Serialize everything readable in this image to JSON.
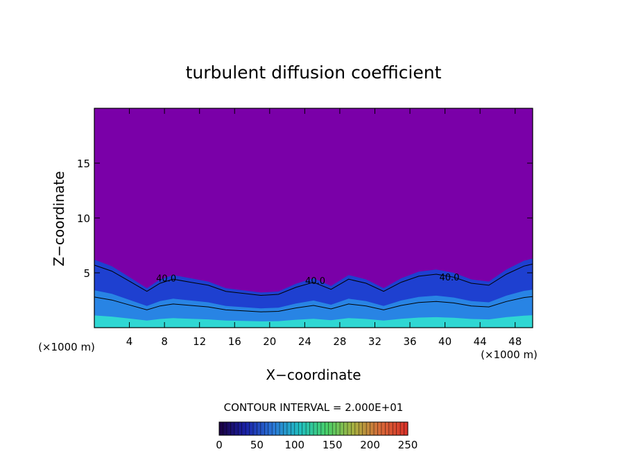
{
  "chart_data": {
    "type": "heatmap",
    "title": "turbulent diffusion coefficient",
    "xlabel": "X−coordinate",
    "ylabel": "Z−coordinate",
    "x_unit_label": "(×1000 m)",
    "x_unit_label_left": "(×1000 m)",
    "xlim": [
      0,
      50
    ],
    "ylim": [
      0,
      20
    ],
    "x_ticks": [
      4,
      8,
      12,
      16,
      20,
      24,
      28,
      32,
      36,
      40,
      44,
      48
    ],
    "y_ticks": [
      5,
      10,
      15
    ],
    "background_value": 0,
    "contour_labels": [
      {
        "text": "40.0",
        "x": 8.2,
        "z": 4.2
      },
      {
        "text": "40.0",
        "x": 25.2,
        "z": 4.0
      },
      {
        "text": "40.0",
        "x": 40.5,
        "z": 4.3
      }
    ],
    "turbulent_layer_top_profile": [
      [
        0,
        6.2
      ],
      [
        2,
        5.6
      ],
      [
        4,
        4.6
      ],
      [
        6,
        3.6
      ],
      [
        7.5,
        4.4
      ],
      [
        9,
        4.8
      ],
      [
        11,
        4.5
      ],
      [
        13,
        4.2
      ],
      [
        15,
        3.6
      ],
      [
        17,
        3.4
      ],
      [
        19,
        3.2
      ],
      [
        21,
        3.3
      ],
      [
        23,
        4.0
      ],
      [
        25,
        4.5
      ],
      [
        27,
        3.8
      ],
      [
        29,
        4.8
      ],
      [
        31,
        4.4
      ],
      [
        33,
        3.6
      ],
      [
        35,
        4.5
      ],
      [
        37,
        5.1
      ],
      [
        39,
        5.3
      ],
      [
        41,
        5.0
      ],
      [
        43,
        4.4
      ],
      [
        45,
        4.2
      ],
      [
        47,
        5.3
      ],
      [
        49,
        6.1
      ],
      [
        50,
        6.3
      ]
    ],
    "colorbar": {
      "title": "CONTOUR INTERVAL = 2.000E+01",
      "range": [
        0,
        250
      ],
      "interval": 20,
      "tick_labels": [
        "0",
        "50",
        "100",
        "150",
        "200",
        "250"
      ],
      "tick_values": [
        0,
        50,
        100,
        150,
        200,
        250
      ],
      "colormap": [
        "#1a0040",
        "#1a22a8",
        "#2a78d8",
        "#20c0c0",
        "#48d068",
        "#a8b040",
        "#d86838",
        "#d83028"
      ]
    },
    "colors": {
      "background_field": "#7a00a8",
      "low_field": "#1e40d0",
      "mid_field": "#2a90e8",
      "high_field": "#30e0d0",
      "contour_line": "#000000"
    }
  }
}
